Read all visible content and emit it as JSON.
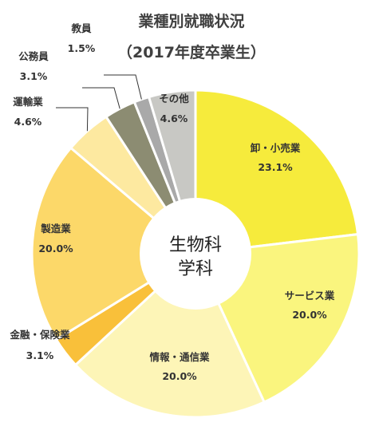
{
  "chart_data": {
    "type": "pie",
    "title": "業種別就職状況",
    "subtitle": "（2017年度卒業生）",
    "center_label": [
      "生物科",
      "学科"
    ],
    "slices": [
      {
        "name": "卸・小売業",
        "value": 23.1,
        "label": "23.1%",
        "color": "#F6EB3C"
      },
      {
        "name": "サービス業",
        "value": 20.0,
        "label": "20.0%",
        "color": "#FAF57E"
      },
      {
        "name": "情報・通信業",
        "value": 20.0,
        "label": "20.0%",
        "color": "#FDF5B7"
      },
      {
        "name": "金融・保険業",
        "value": 3.1,
        "label": "3.1%",
        "color": "#F9C03A"
      },
      {
        "name": "製造業",
        "value": 20.0,
        "label": "20.0%",
        "color": "#FCD869"
      },
      {
        "name": "運輸業",
        "value": 4.6,
        "label": "4.6%",
        "color": "#FDE9A0"
      },
      {
        "name": "公務員",
        "value": 3.1,
        "label": "3.1%",
        "color": "#8C8C72"
      },
      {
        "name": "教員",
        "value": 1.5,
        "label": "1.5%",
        "color": "#A9A9A9"
      },
      {
        "name": "その他",
        "value": 4.6,
        "label": "4.6%",
        "color": "#C8C8C4"
      }
    ]
  }
}
